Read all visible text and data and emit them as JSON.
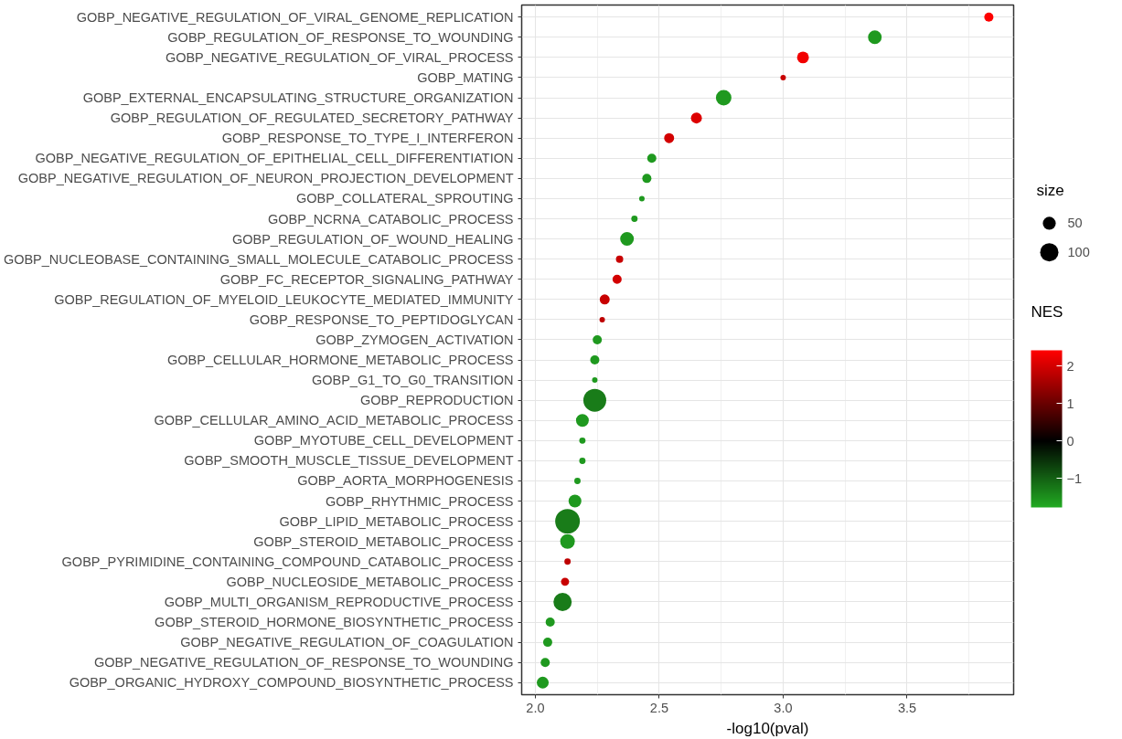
{
  "chart_data": {
    "type": "bubble",
    "orientation": "horizontal",
    "xlabel": "-log10(pval)",
    "legend_title": "size",
    "clabel": "NES",
    "categories": [
      "GOBP_NEGATIVE_REGULATION_OF_VIRAL_GENOME_REPLICATION",
      "GOBP_REGULATION_OF_RESPONSE_TO_WOUNDING",
      "GOBP_NEGATIVE_REGULATION_OF_VIRAL_PROCESS",
      "GOBP_MATING",
      "GOBP_EXTERNAL_ENCAPSULATING_STRUCTURE_ORGANIZATION",
      "GOBP_REGULATION_OF_REGULATED_SECRETORY_PATHWAY",
      "GOBP_RESPONSE_TO_TYPE_I_INTERFERON",
      "GOBP_NEGATIVE_REGULATION_OF_EPITHELIAL_CELL_DIFFERENTIATION",
      "GOBP_NEGATIVE_REGULATION_OF_NEURON_PROJECTION_DEVELOPMENT",
      "GOBP_COLLATERAL_SPROUTING",
      "GOBP_NCRNA_CATABOLIC_PROCESS",
      "GOBP_REGULATION_OF_WOUND_HEALING",
      "GOBP_NUCLEOBASE_CONTAINING_SMALL_MOLECULE_CATABOLIC_PROCESS",
      "GOBP_FC_RECEPTOR_SIGNALING_PATHWAY",
      "GOBP_REGULATION_OF_MYELOID_LEUKOCYTE_MEDIATED_IMMUNITY",
      "GOBP_RESPONSE_TO_PEPTIDOGLYCAN",
      "GOBP_ZYMOGEN_ACTIVATION",
      "GOBP_CELLULAR_HORMONE_METABOLIC_PROCESS",
      "GOBP_G1_TO_G0_TRANSITION",
      "GOBP_REPRODUCTION",
      "GOBP_CELLULAR_AMINO_ACID_METABOLIC_PROCESS",
      "GOBP_MYOTUBE_CELL_DEVELOPMENT",
      "GOBP_SMOOTH_MUSCLE_TISSUE_DEVELOPMENT",
      "GOBP_AORTA_MORPHOGENESIS",
      "GOBP_RHYTHMIC_PROCESS",
      "GOBP_LIPID_METABOLIC_PROCESS",
      "GOBP_STEROID_METABOLIC_PROCESS",
      "GOBP_PYRIMIDINE_CONTAINING_COMPOUND_CATABOLIC_PROCESS",
      "GOBP_NUCLEOSIDE_METABOLIC_PROCESS",
      "GOBP_MULTI_ORGANISM_REPRODUCTIVE_PROCESS",
      "GOBP_STEROID_HORMONE_BIOSYNTHETIC_PROCESS",
      "GOBP_NEGATIVE_REGULATION_OF_COAGULATION",
      "GOBP_NEGATIVE_REGULATION_OF_RESPONSE_TO_WOUNDING",
      "GOBP_ORGANIC_HYDROXY_COMPOUND_BIOSYNTHETIC_PROCESS"
    ],
    "values": [
      3.83,
      3.37,
      3.08,
      3.0,
      2.76,
      2.65,
      2.54,
      2.47,
      2.45,
      2.43,
      2.4,
      2.37,
      2.34,
      2.33,
      2.28,
      2.27,
      2.25,
      2.24,
      2.24,
      2.24,
      2.19,
      2.19,
      2.19,
      2.17,
      2.16,
      2.13,
      2.13,
      2.13,
      2.12,
      2.11,
      2.06,
      2.05,
      2.04,
      2.03
    ],
    "sizes": [
      25,
      56,
      42,
      9,
      72,
      36,
      30,
      25,
      25,
      9,
      12,
      56,
      16,
      25,
      30,
      9,
      25,
      25,
      9,
      156,
      49,
      12,
      12,
      12,
      49,
      182,
      64,
      12,
      20,
      100,
      25,
      25,
      25,
      42
    ],
    "size_legend": [
      50,
      100
    ],
    "cvalues": [
      2.4,
      -1.6,
      2.3,
      1.9,
      -1.6,
      2.1,
      2.0,
      -1.6,
      -1.6,
      -1.6,
      -1.6,
      -1.6,
      1.9,
      2.0,
      1.9,
      1.8,
      -1.6,
      -1.6,
      -1.6,
      -1.3,
      -1.6,
      -1.6,
      -1.6,
      -1.6,
      -1.6,
      -1.3,
      -1.6,
      1.8,
      1.9,
      -1.3,
      -1.6,
      -1.6,
      -1.6,
      -1.6
    ],
    "clim": [
      -1.78,
      2.42
    ],
    "cticks": [
      -1,
      0,
      1,
      2
    ],
    "xlim": [
      1.945,
      3.93
    ],
    "xticks": [
      {
        "value": 2,
        "label": "2.0"
      },
      {
        "value": 2.5,
        "label": "2.5"
      },
      {
        "value": 3,
        "label": "3.0"
      },
      {
        "value": 3.5,
        "label": "3.5"
      }
    ],
    "grid": true
  }
}
